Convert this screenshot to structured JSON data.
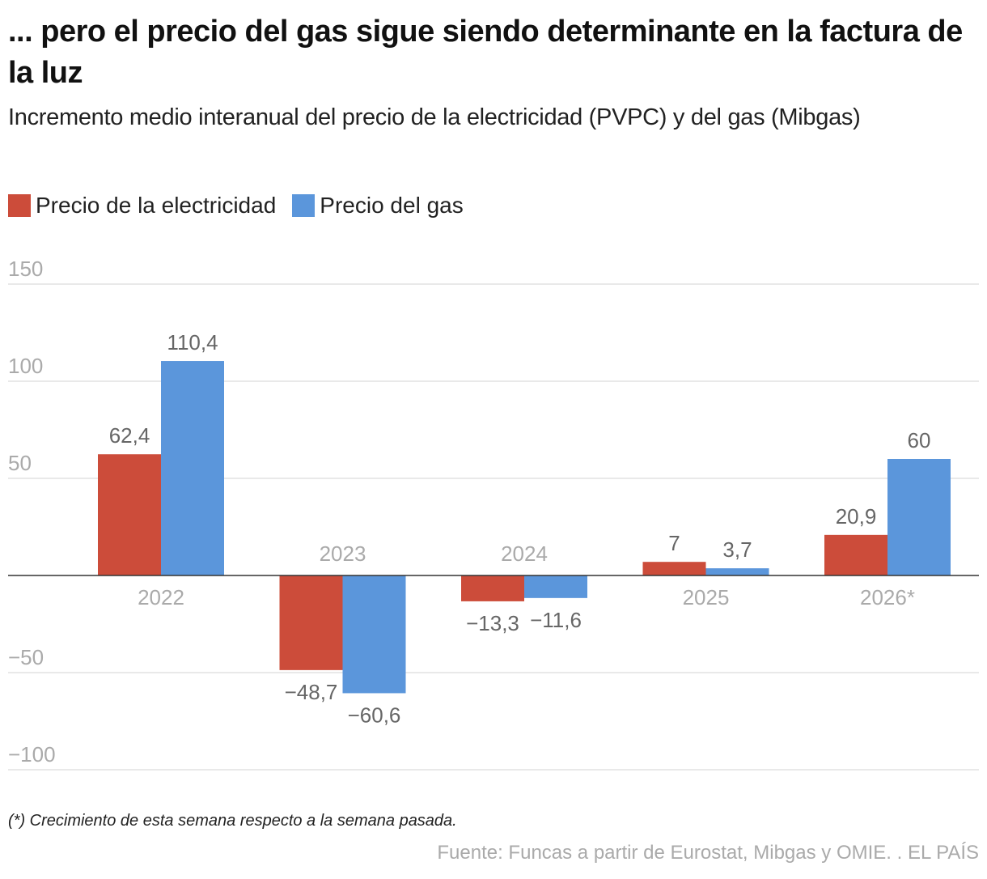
{
  "title": "... pero el precio del gas sigue siendo determinante en la factura de la luz",
  "subtitle": "Incremento medio interanual del precio de la electricidad (PVPC) y del gas (Mibgas)",
  "note": "(*) Crecimiento de esta semana respecto a la semana pasada.",
  "source": "Fuente: Funcas a partir de Eurostat, Mibgas y OMIE. . EL PAÍS",
  "chart_data": {
    "type": "bar",
    "categories": [
      "2022",
      "2023",
      "2024",
      "2025",
      "2026*"
    ],
    "series": [
      {
        "name": "Precio de la electricidad",
        "color": "#cc4c3a",
        "values": [
          62.4,
          -48.7,
          -13.3,
          7,
          20.9
        ],
        "labels": [
          "62,4",
          "−48,7",
          "−13,3",
          "7",
          "20,9"
        ]
      },
      {
        "name": "Precio del gas",
        "color": "#5b96db",
        "values": [
          110.4,
          -60.6,
          -11.6,
          3.7,
          60
        ],
        "labels": [
          "110,4",
          "−60,6",
          "−11,6",
          "3,7",
          "60"
        ]
      }
    ],
    "yticks": [
      150,
      100,
      50,
      0,
      -50,
      -100
    ],
    "ytick_labels": [
      "150",
      "100",
      "50",
      "",
      "−50",
      "−100"
    ],
    "ylim": [
      -100,
      150
    ],
    "grid": true,
    "legend": "top-left"
  }
}
